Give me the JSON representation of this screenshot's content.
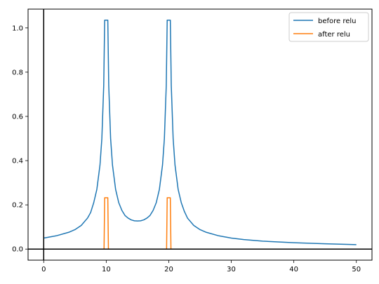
{
  "chart_data": {
    "type": "line",
    "title": "",
    "xlabel": "",
    "ylabel": "",
    "xlim": [
      -2.5,
      52.5
    ],
    "ylim": [
      -0.05,
      1.085
    ],
    "xticks": [
      0,
      10,
      20,
      30,
      40,
      50
    ],
    "yticks": [
      0.0,
      0.2,
      0.4,
      0.6,
      0.8,
      1.0
    ],
    "xtick_labels": [
      "0",
      "10",
      "20",
      "30",
      "40",
      "50"
    ],
    "ytick_labels": [
      "0.0",
      "0.2",
      "0.4",
      "0.6",
      "0.8",
      "1.0"
    ],
    "grid": false,
    "legend_position": "top-right",
    "reference_lines": {
      "x": 0,
      "y": 0
    },
    "series": [
      {
        "name": "before relu",
        "color": "#1f77b4",
        "x": [
          0,
          2,
          4,
          5,
          6,
          7,
          7.5,
          8,
          8.5,
          9,
          9.3,
          9.6,
          9.75,
          10.25,
          10.4,
          10.7,
          11,
          11.5,
          12,
          12.5,
          13,
          13.5,
          14,
          14.5,
          15,
          15.5,
          16,
          16.5,
          17,
          17.5,
          18,
          18.5,
          19,
          19.3,
          19.6,
          19.75,
          20.25,
          20.4,
          20.7,
          21,
          21.5,
          22,
          22.5,
          23,
          24,
          25,
          26,
          28,
          30,
          32,
          35,
          40,
          45,
          50
        ],
        "y": [
          0.05,
          0.06,
          0.076,
          0.088,
          0.107,
          0.14,
          0.165,
          0.21,
          0.27,
          0.38,
          0.5,
          0.74,
          1.035,
          1.035,
          0.74,
          0.5,
          0.38,
          0.27,
          0.21,
          0.175,
          0.152,
          0.14,
          0.132,
          0.128,
          0.127,
          0.128,
          0.132,
          0.14,
          0.152,
          0.175,
          0.21,
          0.27,
          0.38,
          0.5,
          0.74,
          1.035,
          1.035,
          0.74,
          0.5,
          0.38,
          0.27,
          0.21,
          0.17,
          0.14,
          0.107,
          0.088,
          0.076,
          0.06,
          0.05,
          0.043,
          0.036,
          0.029,
          0.024,
          0.02
        ]
      },
      {
        "name": "after relu",
        "color": "#ff7f0e",
        "x": [
          0,
          9.65,
          9.75,
          10.25,
          10.35,
          19.65,
          19.75,
          20.25,
          20.35,
          50
        ],
        "y": [
          0,
          0,
          0.232,
          0.232,
          0,
          0,
          0.232,
          0.232,
          0,
          0
        ]
      }
    ]
  }
}
